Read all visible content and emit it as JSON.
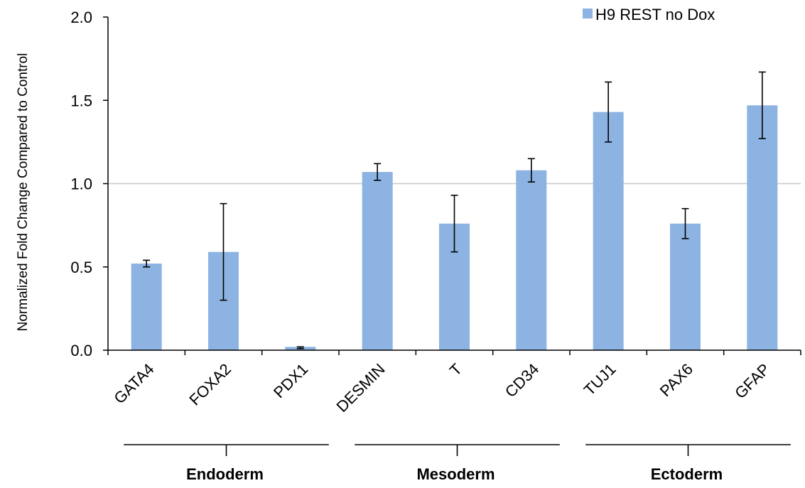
{
  "chart_data": {
    "type": "bar",
    "categories": [
      "GATA4",
      "FOXA2",
      "PDX1",
      "DESMIN",
      "T",
      "CD34",
      "TUJ1",
      "PAX6",
      "GFAP"
    ],
    "series": [
      {
        "name": "H9 REST no Dox",
        "values": [
          0.52,
          0.59,
          0.02,
          1.07,
          0.76,
          1.08,
          1.43,
          0.76,
          1.47
        ],
        "error_low": [
          0.5,
          0.3,
          0.01,
          1.02,
          0.59,
          1.01,
          1.25,
          0.67,
          1.27
        ],
        "error_high": [
          0.54,
          0.88,
          0.02,
          1.12,
          0.93,
          1.15,
          1.61,
          0.85,
          1.67
        ],
        "color": "#8db3e2"
      }
    ],
    "ylabel": "Normalized Fold Change Compared to Control",
    "ylim": [
      0.0,
      2.0
    ],
    "yticks": [
      "0.0",
      "0.5",
      "1.0",
      "1.5",
      "2.0"
    ],
    "reference_line": 1.0,
    "groups": [
      {
        "label": "Endoderm",
        "categories": [
          "GATA4",
          "FOXA2",
          "PDX1"
        ]
      },
      {
        "label": "Mesoderm",
        "categories": [
          "DESMIN",
          "T",
          "CD34"
        ]
      },
      {
        "label": "Ectoderm",
        "categories": [
          "TUJ1",
          "PAX6",
          "GFAP"
        ]
      }
    ],
    "legend_position": "top-right",
    "grid": false
  }
}
